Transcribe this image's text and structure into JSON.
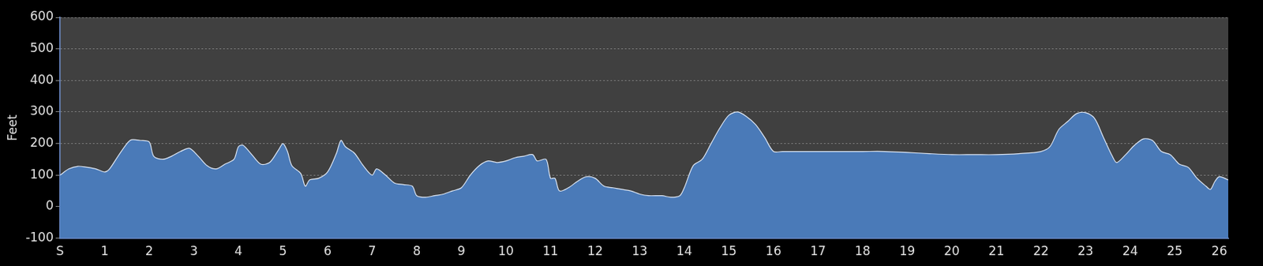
{
  "chart_data": {
    "type": "area",
    "y_label": "Feet",
    "x": [
      0,
      0.2,
      0.4,
      0.6,
      0.8,
      1.0,
      1.1,
      1.3,
      1.5,
      1.6,
      1.8,
      2.0,
      2.1,
      2.3,
      2.5,
      2.7,
      2.9,
      3.1,
      3.3,
      3.5,
      3.7,
      3.9,
      4.0,
      4.1,
      4.3,
      4.5,
      4.7,
      4.9,
      5.0,
      5.1,
      5.2,
      5.4,
      5.5,
      5.6,
      5.8,
      6.0,
      6.2,
      6.3,
      6.4,
      6.6,
      6.8,
      7.0,
      7.1,
      7.3,
      7.5,
      7.7,
      7.9,
      8.0,
      8.2,
      8.4,
      8.6,
      8.8,
      9.0,
      9.2,
      9.4,
      9.6,
      9.8,
      10.0,
      10.2,
      10.4,
      10.6,
      10.7,
      10.9,
      11.0,
      11.1,
      11.2,
      11.4,
      11.6,
      11.8,
      12.0,
      12.2,
      12.4,
      12.6,
      12.8,
      13.0,
      13.2,
      13.5,
      13.7,
      13.9,
      14.0,
      14.2,
      14.4,
      14.6,
      14.8,
      15.0,
      15.2,
      15.4,
      15.6,
      15.8,
      16.0,
      16.2,
      16.5,
      17.0,
      17.5,
      18.0,
      18.5,
      19.0,
      19.5,
      20.0,
      20.5,
      21.0,
      21.5,
      22.0,
      22.2,
      22.4,
      22.6,
      22.8,
      23.0,
      23.2,
      23.4,
      23.6,
      23.7,
      23.9,
      24.1,
      24.3,
      24.5,
      24.7,
      24.9,
      25.1,
      25.3,
      25.5,
      25.7,
      25.8,
      25.9,
      26.0,
      26.2
    ],
    "values": [
      100,
      120,
      128,
      125,
      120,
      110,
      118,
      160,
      200,
      212,
      210,
      205,
      160,
      150,
      160,
      175,
      185,
      160,
      130,
      120,
      135,
      150,
      190,
      195,
      165,
      135,
      140,
      180,
      200,
      175,
      130,
      105,
      65,
      85,
      90,
      110,
      170,
      210,
      190,
      170,
      130,
      100,
      120,
      100,
      75,
      70,
      65,
      35,
      30,
      35,
      40,
      50,
      60,
      100,
      130,
      145,
      140,
      145,
      155,
      160,
      165,
      145,
      150,
      90,
      90,
      50,
      60,
      80,
      95,
      90,
      65,
      60,
      55,
      50,
      40,
      35,
      35,
      30,
      35,
      60,
      130,
      150,
      200,
      250,
      290,
      300,
      285,
      260,
      220,
      175,
      175,
      175,
      175,
      175,
      175,
      175,
      172,
      168,
      165,
      165,
      165,
      168,
      175,
      190,
      245,
      270,
      295,
      298,
      280,
      220,
      160,
      140,
      165,
      195,
      215,
      210,
      175,
      165,
      135,
      125,
      90,
      65,
      55,
      80,
      95,
      85
    ],
    "color": "#4a7ab8",
    "xlim": [
      0,
      26.2
    ],
    "xticks": [
      {
        "value": 0,
        "label": "S"
      },
      1,
      2,
      3,
      4,
      5,
      6,
      7,
      8,
      9,
      10,
      11,
      12,
      13,
      14,
      15,
      16,
      17,
      18,
      19,
      20,
      21,
      22,
      23,
      24,
      25,
      26
    ],
    "ylim": [
      -100,
      600
    ],
    "yticks": [
      -100,
      0,
      100,
      200,
      300,
      400,
      500,
      600
    ],
    "grid": true
  }
}
